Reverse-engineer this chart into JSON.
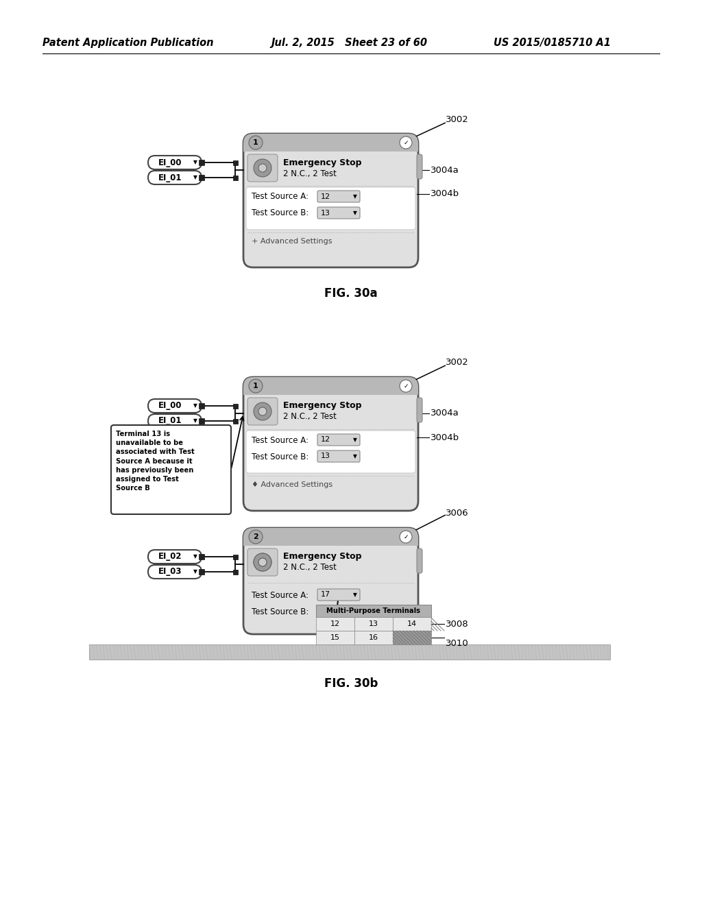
{
  "bg_color": "#ffffff",
  "header_left": "Patent Application Publication",
  "header_mid": "Jul. 2, 2015   Sheet 23 of 60",
  "header_right": "US 2015/0185710 A1",
  "fig30a_label": "FIG. 30a",
  "fig30b_label": "FIG. 30b",
  "ref_3002a": "3002",
  "ref_3002b": "3002",
  "ref_3004a": "3004a",
  "ref_3004b": "3004b",
  "ref_3006": "3006",
  "ref_3008": "3008",
  "ref_3010": "3010",
  "el00": "EI_00",
  "el01": "EI_01",
  "el02": "EI_02",
  "el03": "EI_03",
  "emg_title": "Emergency Stop",
  "emg_sub": "2 N.C., 2 Test",
  "test_src_a": "Test Source A:",
  "test_src_b": "Test Source B:",
  "adv_set1": "+ Advanced Settings",
  "adv_set2": "♦ Advanced Settings",
  "val_12": "12",
  "val_13": "13",
  "val_17": "17",
  "tooltip": "Terminal 13 is\nunavailable to be\nassociated with Test\nSource A because it\nhas previously been\nassigned to Test\nSource B",
  "dd_header": "Multi-Purpose Terminals",
  "dd_row1": [
    "12",
    "13",
    "14"
  ],
  "dd_row2": [
    "15",
    "16",
    ""
  ]
}
